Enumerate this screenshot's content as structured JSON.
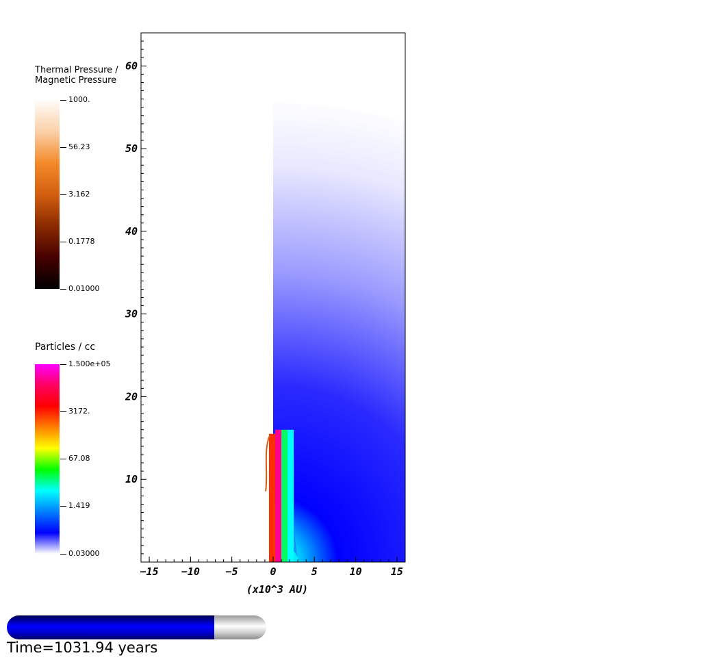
{
  "colorbars": {
    "pressure": {
      "title_line1": "Thermal Pressure /",
      "title_line2": "Magnetic Pressure",
      "ticks": [
        "1000.",
        "56.23",
        "3.162",
        "0.1778",
        "0.01000"
      ],
      "colors": [
        "#fffdfa",
        "#fbd0a8",
        "#f48a2a",
        "#d35f10",
        "#8a2a00",
        "#470000",
        "#000000"
      ]
    },
    "density": {
      "title": "Particles / cc",
      "ticks": [
        "1.500e+05",
        "3172.",
        "67.08",
        "1.419",
        "0.03000"
      ],
      "colors": [
        "#ff00ff",
        "#ff0060",
        "#ff0000",
        "#ff8000",
        "#ffff00",
        "#00ff00",
        "#00ffff",
        "#0080ff",
        "#0000ff",
        "#ffffff"
      ]
    }
  },
  "chart_data": {
    "type": "heatmap",
    "title": "",
    "xlabel": "(x10^3 AU)",
    "ylabel": "",
    "xlim": [
      -16,
      16
    ],
    "ylim": [
      0,
      64
    ],
    "x_ticks": [
      -15,
      -10,
      -5,
      0,
      5,
      10,
      15
    ],
    "x_tick_labels": [
      "−15",
      "−10",
      "−5",
      "0",
      "5",
      "10",
      "15"
    ],
    "y_ticks": [
      10,
      20,
      30,
      40,
      50,
      60
    ],
    "y_tick_labels": [
      "10",
      "20",
      "30",
      "40",
      "50",
      "60"
    ],
    "density_domain": {
      "x": [
        0,
        16
      ],
      "radius_max": 55.5
    },
    "jet": {
      "x_range": [
        -0.5,
        2.5
      ],
      "height": 16,
      "colors": [
        "#ff3000",
        "#ff0090",
        "#00ff60",
        "#00ffff"
      ]
    },
    "grid": false,
    "legend": "left"
  },
  "progress": {
    "fraction": 0.8,
    "color": "#0000ff",
    "track_color": "#d0d0d0"
  },
  "time_label": "Time=1031.94 years"
}
